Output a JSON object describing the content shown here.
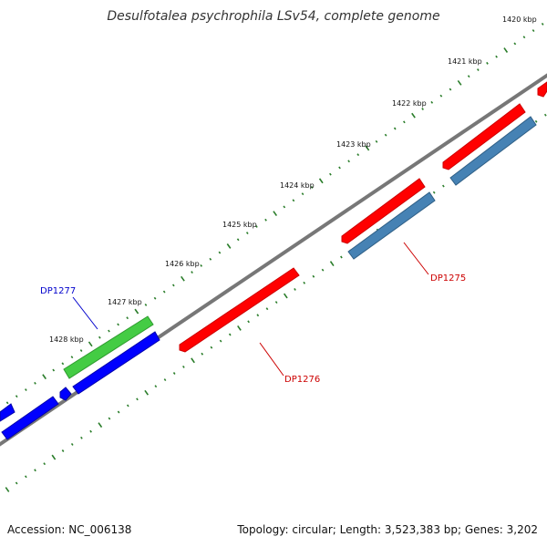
{
  "title": "Desulfotalea psychrophila LSv54, complete genome",
  "footer": {
    "accession": "Accession: NC_006138",
    "summary": "Topology: circular; Length: 3,523,383 bp; Genes: 3,202"
  },
  "tick_labels": [
    "1420 kbp",
    "1421 kbp",
    "1422 kbp",
    "1423 kbp",
    "1424 kbp",
    "1425 kbp",
    "1426 kbp",
    "1427 kbp",
    "1428 kbp"
  ],
  "gene_labels": [
    {
      "name": "DP1277",
      "color": "#0000cc"
    },
    {
      "name": "DP1275",
      "color": "#cc0000"
    },
    {
      "name": "DP1276",
      "color": "#cc0000"
    }
  ],
  "colors": {
    "backbone": "#777777",
    "tick": "#2a7d2a",
    "forward_gene": "#ff0000",
    "reverse_gene": "#0000ff",
    "highlight_gene": "#44cc44",
    "rna_gene": "#4682b4"
  }
}
